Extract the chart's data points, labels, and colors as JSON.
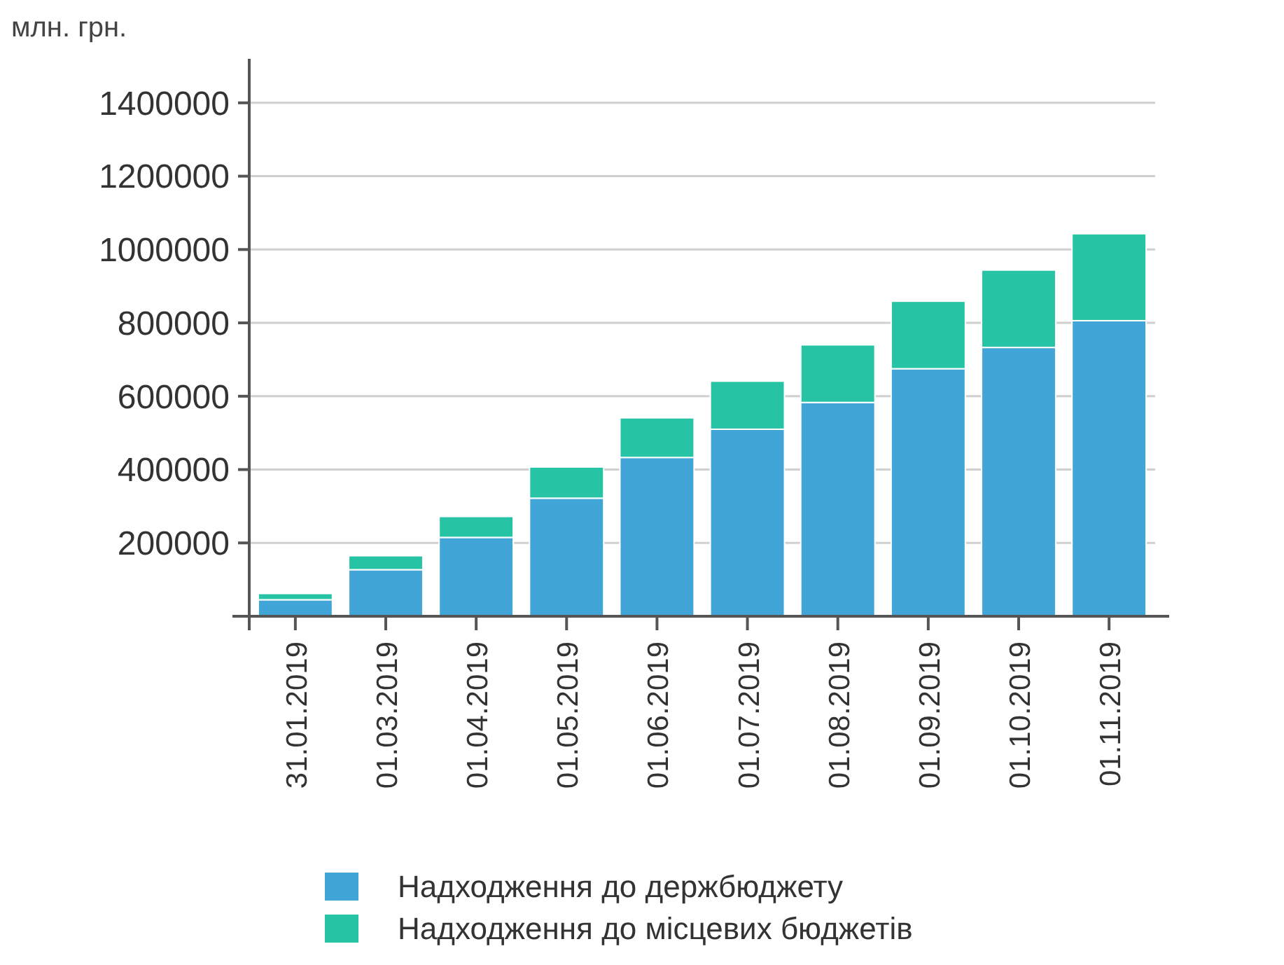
{
  "chart_data": {
    "type": "bar",
    "stacked": true,
    "ylabel": "млн. грн.",
    "categories": [
      "31.01.2019",
      "01.03.2019",
      "01.04.2019",
      "01.05.2019",
      "01.06.2019",
      "01.07.2019",
      "01.08.2019",
      "01.09.2019",
      "01.10.2019",
      "01.11.2019"
    ],
    "series": [
      {
        "name": "Надходження до держбюджету",
        "color": "#42a5d8",
        "values": [
          45000,
          127000,
          215000,
          322000,
          433000,
          510000,
          583000,
          675000,
          733000,
          806000
        ]
      },
      {
        "name": "Надходження до місцевих бюджетів",
        "color": "#26c4a5",
        "values": [
          17000,
          38000,
          57000,
          85000,
          108000,
          131000,
          157000,
          184000,
          211000,
          237000
        ]
      }
    ],
    "ylim": [
      0,
      1520000
    ],
    "yticks": [
      {
        "value": 0,
        "label": null
      },
      200000,
      400000,
      600000,
      800000,
      1000000,
      1200000,
      1400000
    ],
    "grid": "y",
    "legend": "bottom"
  }
}
